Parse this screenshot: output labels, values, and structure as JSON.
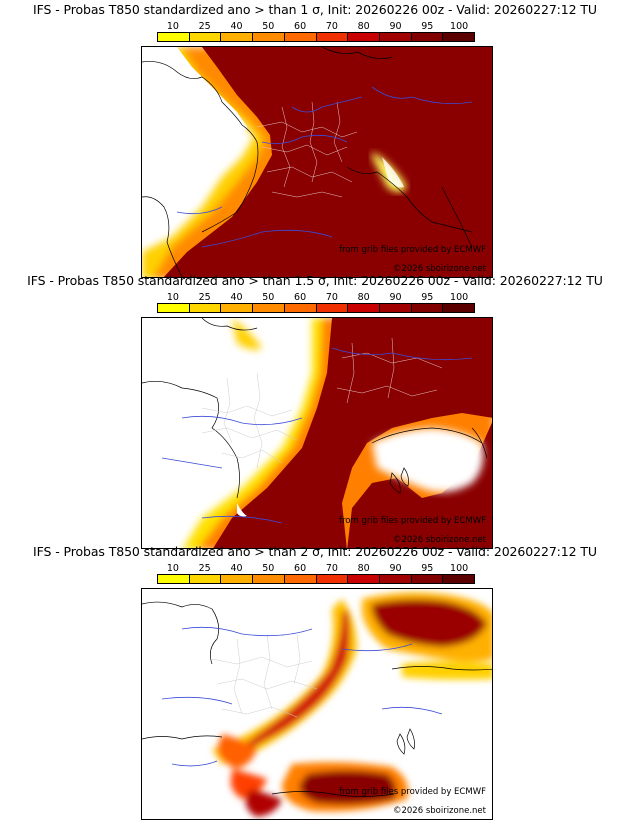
{
  "colorbar": {
    "ticks": [
      "10",
      "25",
      "40",
      "50",
      "60",
      "70",
      "80",
      "90",
      "95",
      "100"
    ],
    "colors": [
      "#ffff00",
      "#ffd700",
      "#ffb000",
      "#ff8c00",
      "#ff6a00",
      "#f03000",
      "#c80000",
      "#a00000",
      "#800000",
      "#5a0000"
    ]
  },
  "panels": [
    {
      "title": "IFS - Probas T850  standardized ano > than 1 σ, Init: 20260226 00z - Valid: 20260227:12 TU",
      "source": "from grib files provided by ECMWF",
      "copyright": "©2026 sboirizone.net"
    },
    {
      "title": "IFS - Probas T850  standardized ano > than 1.5 σ, Init: 20260226 00z - Valid: 20260227:12 TU",
      "source": "from grib files provided by ECMWF",
      "copyright": "©2026 sboirizone.net"
    },
    {
      "title": "IFS - Probas T850  standardized ano > than 2 σ, Init: 20260226 00z - Valid: 20260227:12 TU",
      "source": "from grib files provided by ECMWF",
      "copyright": "©2026 sboirizone.net"
    }
  ]
}
